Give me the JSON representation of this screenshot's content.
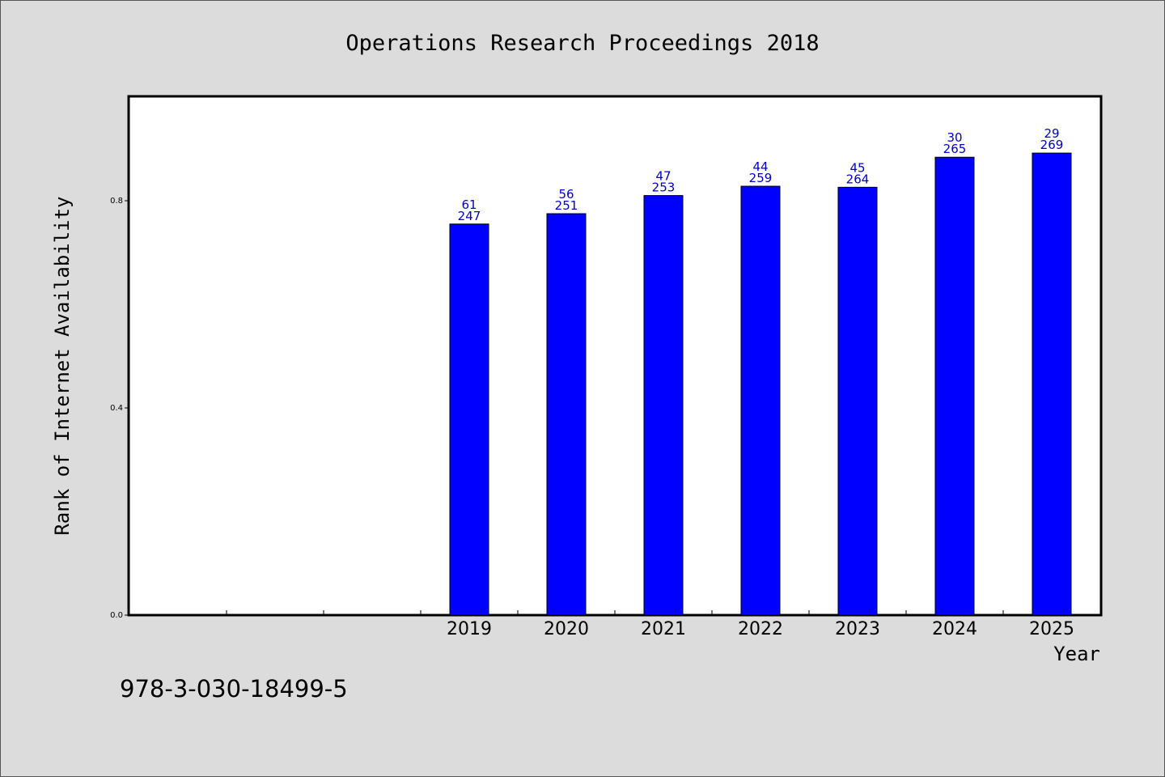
{
  "chart_data": {
    "type": "bar",
    "title": "Operations Research Proceedings 2018",
    "xlabel": "Year",
    "ylabel": "Rank of Internet Availability",
    "ylim": [
      0,
      1.0
    ],
    "yticks": [
      0.0,
      0.4,
      0.8
    ],
    "ytick_labels": [
      "0.0",
      "0.4",
      "0.8"
    ],
    "categories": [
      "",
      "",
      "",
      "2019",
      "2020",
      "2021",
      "2022",
      "2023",
      "2024",
      "2025"
    ],
    "values": [
      null,
      null,
      null,
      0.755,
      0.775,
      0.81,
      0.828,
      0.826,
      0.884,
      0.892
    ],
    "label_top": [
      "",
      "",
      "",
      "61",
      "56",
      "47",
      "44",
      "45",
      "30",
      "29"
    ],
    "label_bottom": [
      "",
      "",
      "",
      "247",
      "251",
      "253",
      "259",
      "264",
      "265",
      "269"
    ],
    "bar_color": "#0000ff",
    "label_color": "#0000cc",
    "grid": false,
    "legend": "none"
  },
  "footer": {
    "isbn": "978-3-030-18499-5"
  }
}
